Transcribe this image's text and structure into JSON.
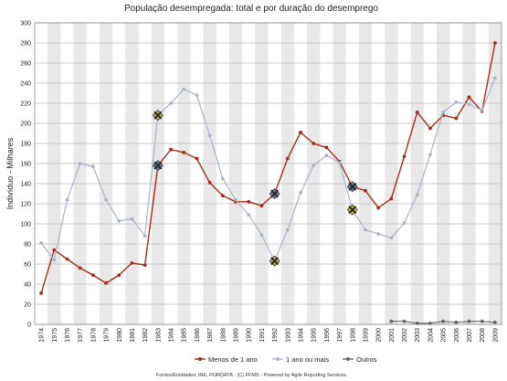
{
  "chart_data": {
    "type": "line",
    "title": "População desempregada: total e por duração do desemprego",
    "ylabel": "Indivíduo - Milhares",
    "xlabel": "",
    "ylim": [
      0,
      300
    ],
    "ytick_step": 20,
    "grid": true,
    "alternating_year_bands": true,
    "legend_position": "bottom",
    "x": [
      "1974",
      "1975",
      "1976",
      "1977",
      "1978",
      "1979",
      "1980",
      "1981",
      "1982",
      "1983",
      "1984",
      "1985",
      "1986",
      "1987",
      "1988",
      "1989",
      "1990",
      "1991",
      "1992",
      "1993",
      "1994",
      "1995",
      "1996",
      "1997",
      "1998",
      "1999",
      "2000",
      "2001",
      "2002",
      "2003",
      "2004",
      "2005",
      "2006",
      "2007",
      "2008",
      "2009"
    ],
    "series": [
      {
        "name": "Menos de 1 ano",
        "color": "#a52a1a",
        "values": [
          31,
          74,
          65,
          56,
          49,
          41,
          49,
          61,
          59,
          158,
          174,
          171,
          165,
          141,
          128,
          122,
          122,
          118,
          130,
          165,
          191,
          180,
          176,
          162,
          137,
          133,
          116,
          125,
          167,
          211,
          195,
          208,
          205,
          226,
          212,
          280
        ]
      },
      {
        "name": "1 ano ou mais",
        "color": "#a7b4cc",
        "values": [
          81,
          64,
          124,
          160,
          157,
          124,
          103,
          105,
          88,
          208,
          220,
          234,
          228,
          188,
          145,
          124,
          109,
          89,
          63,
          94,
          131,
          158,
          168,
          161,
          114,
          94,
          90,
          86,
          101,
          129,
          169,
          211,
          221,
          219,
          213,
          245
        ]
      },
      {
        "name": "Outros",
        "color": "#666666",
        "values": [
          null,
          null,
          null,
          null,
          null,
          null,
          null,
          null,
          null,
          null,
          null,
          null,
          null,
          null,
          null,
          null,
          null,
          null,
          null,
          null,
          null,
          null,
          null,
          null,
          null,
          null,
          null,
          3,
          3,
          1,
          1,
          3,
          2,
          3,
          3,
          2
        ]
      }
    ],
    "highlighted_points": [
      {
        "series": "Menos de 1 ano",
        "x": "1983",
        "value": 158
      },
      {
        "series": "1 ano ou mais",
        "x": "1983",
        "value": 208
      },
      {
        "series": "Menos de 1 ano",
        "x": "1992",
        "value": 130
      },
      {
        "series": "1 ano ou mais",
        "x": "1992",
        "value": 63
      },
      {
        "series": "Menos de 1 ano",
        "x": "1998",
        "value": 137
      },
      {
        "series": "1 ano ou mais",
        "x": "1998",
        "value": 114
      }
    ]
  },
  "footer": {
    "source": "Fontes/Entidades: INE, PORDATA - (C) FFMS - Powered by Agile Reporting Services"
  }
}
